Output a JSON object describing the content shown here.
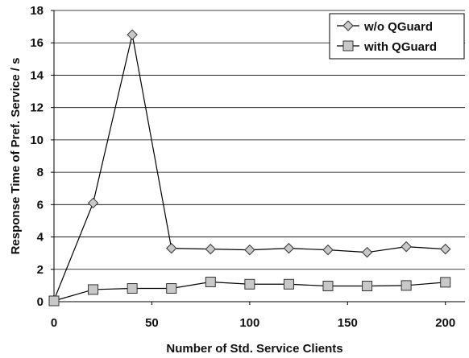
{
  "chart_data": {
    "type": "line",
    "xlabel": "Number of Std. Service Clients",
    "ylabel": "Response Time of Pref. Service / s",
    "xlim": [
      0,
      210
    ],
    "ylim": [
      0,
      18
    ],
    "x_ticks": [
      0,
      50,
      100,
      150,
      200
    ],
    "y_ticks": [
      0,
      2,
      4,
      6,
      8,
      10,
      12,
      14,
      16,
      18
    ],
    "grid": "horizontal",
    "legend_position": "top-right",
    "series": [
      {
        "name": "w/o QGuard",
        "marker": "diamond",
        "marker_color": "#c8c8c8",
        "line_color": "#000000",
        "x": [
          0,
          20,
          40,
          60,
          80,
          100,
          120,
          140,
          160,
          180,
          200
        ],
        "values": [
          0.1,
          6.1,
          16.5,
          3.3,
          3.25,
          3.2,
          3.3,
          3.2,
          3.05,
          3.4,
          3.25
        ]
      },
      {
        "name": "with QGuard",
        "marker": "square",
        "marker_color": "#c8c8c8",
        "line_color": "#000000",
        "x": [
          0,
          20,
          40,
          60,
          80,
          100,
          120,
          140,
          160,
          180,
          200
        ],
        "values": [
          0.05,
          0.75,
          0.82,
          0.82,
          1.22,
          1.08,
          1.08,
          0.97,
          0.97,
          1.0,
          1.2
        ]
      }
    ]
  }
}
